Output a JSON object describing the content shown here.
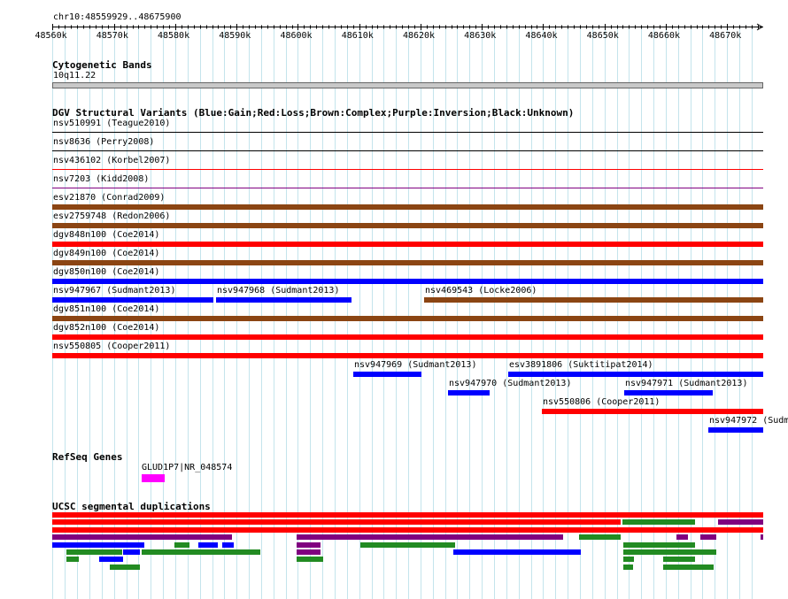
{
  "region": "chr10:48559929..48675900",
  "ruler": {
    "ticks": [
      "48560k",
      "48570k",
      "48580k",
      "48590k",
      "48600k",
      "48610k",
      "48620k",
      "48630k",
      "48640k",
      "48650k",
      "48660k",
      "48670k"
    ]
  },
  "cytoband": {
    "title": "Cytogenetic Bands",
    "band": "10q11.22"
  },
  "dgv": {
    "title": "DGV Structural Variants (Blue:Gain;Red:Loss;Brown:Complex;Purple:Inversion;Black:Unknown)",
    "colors": {
      "gain": "#0000ff",
      "loss": "#ff0000",
      "complex": "#8b4513",
      "inversion": "#800080",
      "unknown": "#000000"
    },
    "features": [
      {
        "label": "nsv510991 (Teague2010)",
        "type": "unknown",
        "start": 48559929,
        "end": 48675900,
        "row": 0
      },
      {
        "label": "nsv8636 (Perry2008)",
        "type": "unknown",
        "start": 48559929,
        "end": 48675900,
        "row": 1
      },
      {
        "label": "nsv436102 (Korbel2007)",
        "type": "loss",
        "start": 48559929,
        "end": 48675900,
        "row": 2
      },
      {
        "label": "nsv7203 (Kidd2008)",
        "type": "inversion",
        "start": 48559929,
        "end": 48675900,
        "row": 3
      },
      {
        "label": "esv21870 (Conrad2009)",
        "type": "complex",
        "start": 48559929,
        "end": 48675900,
        "row": 4
      },
      {
        "label": "esv2759748 (Redon2006)",
        "type": "complex",
        "start": 48559929,
        "end": 48675900,
        "row": 5
      },
      {
        "label": "dgv848n100 (Coe2014)",
        "type": "loss",
        "start": 48559929,
        "end": 48675900,
        "row": 6
      },
      {
        "label": "dgv849n100 (Coe2014)",
        "type": "complex",
        "start": 48559929,
        "end": 48675900,
        "row": 7
      },
      {
        "label": "dgv850n100 (Coe2014)",
        "type": "gain",
        "start": 48559929,
        "end": 48675900,
        "row": 8
      },
      {
        "label": "nsv947967 (Sudmant2013)",
        "type": "gain",
        "start": 48559929,
        "end": 48586200,
        "row": 9
      },
      {
        "label": "nsv947968 (Sudmant2013)",
        "type": "gain",
        "start": 48586700,
        "end": 48608700,
        "row": 9
      },
      {
        "label": "nsv469543 (Locke2006)",
        "type": "complex",
        "start": 48620600,
        "end": 48675900,
        "row": 9
      },
      {
        "label": "dgv851n100 (Coe2014)",
        "type": "complex",
        "start": 48559929,
        "end": 48675900,
        "row": 10
      },
      {
        "label": "dgv852n100 (Coe2014)",
        "type": "loss",
        "start": 48559929,
        "end": 48675900,
        "row": 11
      },
      {
        "label": "nsv550805 (Cooper2011)",
        "type": "loss",
        "start": 48559929,
        "end": 48675900,
        "row": 12
      },
      {
        "label": "nsv947969 (Sudmant2013)",
        "type": "gain",
        "start": 48609000,
        "end": 48620200,
        "row": 13
      },
      {
        "label": "esv3891806 (Suktitipat2014)",
        "type": "gain",
        "start": 48634300,
        "end": 48675900,
        "row": 13
      },
      {
        "label": "nsv947970 (Sudmant2013)",
        "type": "gain",
        "start": 48624500,
        "end": 48631300,
        "row": 14
      },
      {
        "label": "nsv947971 (Sudmant2013)",
        "type": "gain",
        "start": 48653200,
        "end": 48667700,
        "row": 14
      },
      {
        "label": "nsv550806 (Cooper2011)",
        "type": "loss",
        "start": 48639800,
        "end": 48675900,
        "row": 15
      },
      {
        "label": "nsv947972 (Sudm",
        "type": "gain",
        "start": 48667000,
        "end": 48675900,
        "row": 16
      }
    ]
  },
  "refseq": {
    "title": "RefSeq Genes",
    "genes": [
      {
        "label": "GLUD1P7|NR_048574",
        "start": 48574500,
        "end": 48578200,
        "color": "#ff00ff"
      }
    ]
  },
  "segdups": {
    "title": "UCSC segmental duplications",
    "colors": {
      "red": "#ff0000",
      "purple": "#800080",
      "blue": "#0000ff",
      "green": "#228b22"
    },
    "features": [
      {
        "row": 0,
        "start": 48559929,
        "end": 48675900,
        "color": "red"
      },
      {
        "row": 1,
        "start": 48559929,
        "end": 48652600,
        "color": "red"
      },
      {
        "row": 1,
        "start": 48653000,
        "end": 48664800,
        "color": "green"
      },
      {
        "row": 1,
        "start": 48668600,
        "end": 48675900,
        "color": "purple"
      },
      {
        "row": 2,
        "start": 48559929,
        "end": 48675900,
        "color": "red"
      },
      {
        "row": 3,
        "start": 48559929,
        "end": 48589300,
        "color": "purple"
      },
      {
        "row": 3,
        "start": 48599800,
        "end": 48643200,
        "color": "purple"
      },
      {
        "row": 3,
        "start": 48645800,
        "end": 48652700,
        "color": "green"
      },
      {
        "row": 3,
        "start": 48661800,
        "end": 48663600,
        "color": "purple"
      },
      {
        "row": 3,
        "start": 48665600,
        "end": 48668200,
        "color": "purple"
      },
      {
        "row": 3,
        "start": 48675500,
        "end": 48675900,
        "color": "purple"
      },
      {
        "row": 4,
        "start": 48559929,
        "end": 48574900,
        "color": "blue"
      },
      {
        "row": 4,
        "start": 48579900,
        "end": 48582300,
        "color": "green"
      },
      {
        "row": 4,
        "start": 48583800,
        "end": 48587000,
        "color": "blue"
      },
      {
        "row": 4,
        "start": 48587700,
        "end": 48589600,
        "color": "blue"
      },
      {
        "row": 4,
        "start": 48599800,
        "end": 48603700,
        "color": "purple"
      },
      {
        "row": 4,
        "start": 48610200,
        "end": 48625600,
        "color": "green"
      },
      {
        "row": 4,
        "start": 48653100,
        "end": 48664800,
        "color": "green"
      },
      {
        "row": 5,
        "start": 48562300,
        "end": 48571300,
        "color": "green"
      },
      {
        "row": 5,
        "start": 48571500,
        "end": 48574200,
        "color": "blue"
      },
      {
        "row": 5,
        "start": 48574500,
        "end": 48593900,
        "color": "green"
      },
      {
        "row": 5,
        "start": 48599800,
        "end": 48603700,
        "color": "purple"
      },
      {
        "row": 5,
        "start": 48625400,
        "end": 48646200,
        "color": "blue"
      },
      {
        "row": 5,
        "start": 48653100,
        "end": 48668200,
        "color": "green"
      },
      {
        "row": 6,
        "start": 48562300,
        "end": 48564300,
        "color": "green"
      },
      {
        "row": 6,
        "start": 48567600,
        "end": 48571500,
        "color": "blue"
      },
      {
        "row": 6,
        "start": 48599800,
        "end": 48604100,
        "color": "green"
      },
      {
        "row": 6,
        "start": 48653100,
        "end": 48654800,
        "color": "green"
      },
      {
        "row": 6,
        "start": 48659600,
        "end": 48664800,
        "color": "green"
      },
      {
        "row": 7,
        "start": 48569300,
        "end": 48574200,
        "color": "green"
      },
      {
        "row": 7,
        "start": 48653100,
        "end": 48654600,
        "color": "green"
      },
      {
        "row": 7,
        "start": 48659600,
        "end": 48667800,
        "color": "green"
      }
    ]
  }
}
